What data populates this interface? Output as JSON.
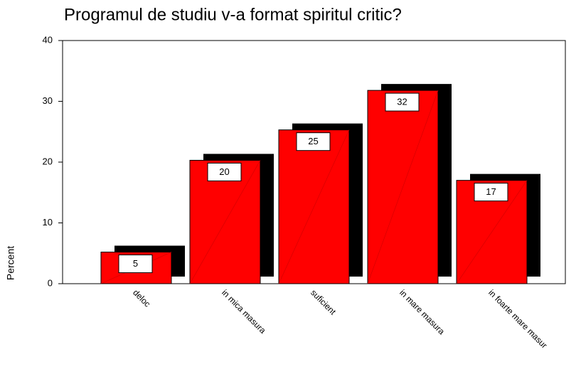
{
  "chart_data": {
    "type": "bar",
    "title": "Programul de studiu v-a format spiritul critic?",
    "y_label": "Percent",
    "categories": [
      "deloc",
      "in mica masura",
      "suficient",
      "in mare masura",
      "in foarte mare masur"
    ],
    "values": [
      5.2,
      20.3,
      25.3,
      31.8,
      17
    ],
    "value_labels": [
      "5",
      "20",
      "25",
      "32",
      "17"
    ],
    "color": "#ff0000",
    "ylim": [
      0,
      40
    ],
    "yticks": [
      0,
      10,
      20,
      30,
      40
    ]
  }
}
